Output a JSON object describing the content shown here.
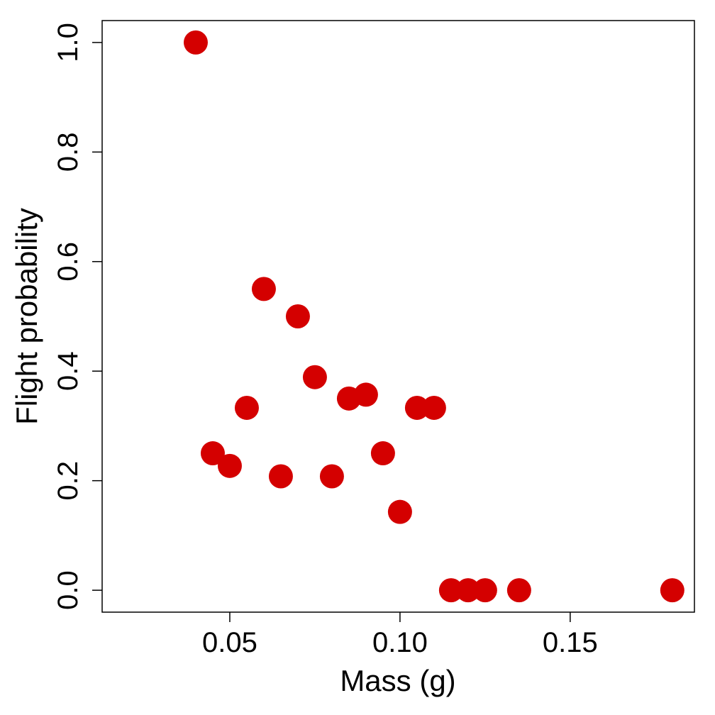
{
  "chart_data": {
    "type": "scatter",
    "title": "",
    "xlabel": "Mass (g)",
    "ylabel": "Flight probability",
    "xlim": [
      0.0125,
      0.1865
    ],
    "ylim": [
      -0.04,
      1.04
    ],
    "x_ticks": [
      0.05,
      0.1,
      0.15
    ],
    "x_tick_labels": [
      "0.05",
      "0.10",
      "0.15"
    ],
    "y_ticks": [
      0.0,
      0.2,
      0.4,
      0.6,
      0.8,
      1.0
    ],
    "y_tick_labels": [
      "0.0",
      "0.2",
      "0.4",
      "0.6",
      "0.8",
      "1.0"
    ],
    "grid": false,
    "legend": "none",
    "marker_color": "#d40000",
    "points": [
      {
        "x": 0.04,
        "y": 1.0
      },
      {
        "x": 0.045,
        "y": 0.25
      },
      {
        "x": 0.05,
        "y": 0.227
      },
      {
        "x": 0.055,
        "y": 0.333
      },
      {
        "x": 0.06,
        "y": 0.55
      },
      {
        "x": 0.065,
        "y": 0.208
      },
      {
        "x": 0.07,
        "y": 0.5
      },
      {
        "x": 0.075,
        "y": 0.389
      },
      {
        "x": 0.08,
        "y": 0.208
      },
      {
        "x": 0.085,
        "y": 0.35
      },
      {
        "x": 0.09,
        "y": 0.357
      },
      {
        "x": 0.095,
        "y": 0.25
      },
      {
        "x": 0.1,
        "y": 0.143
      },
      {
        "x": 0.105,
        "y": 0.333
      },
      {
        "x": 0.11,
        "y": 0.333
      },
      {
        "x": 0.115,
        "y": 0.0
      },
      {
        "x": 0.12,
        "y": 0.0
      },
      {
        "x": 0.125,
        "y": 0.0
      },
      {
        "x": 0.135,
        "y": 0.0
      },
      {
        "x": 0.18,
        "y": 0.0
      }
    ]
  }
}
